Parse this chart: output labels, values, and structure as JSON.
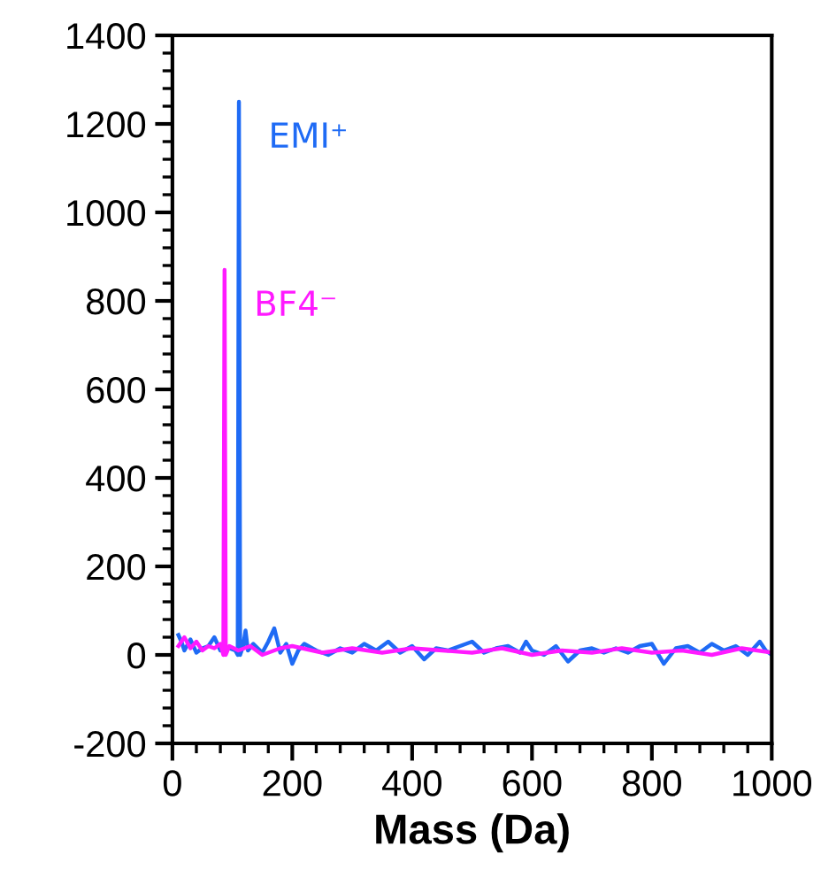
{
  "chart_data": {
    "type": "line",
    "xlabel": "Mass (Da)",
    "xlim": [
      0,
      1000
    ],
    "xticks": [
      0,
      200,
      400,
      600,
      800,
      1000
    ],
    "ylim": [
      -200,
      1400
    ],
    "yticks": [
      -200,
      0,
      200,
      400,
      600,
      800,
      1000,
      1200,
      1400
    ],
    "grid": false,
    "legend": false,
    "marker": "none",
    "line_style": "solid",
    "series": [
      {
        "name": "EMI⁺",
        "color": "#1f6bf5",
        "x": [
          10,
          15,
          20,
          30,
          40,
          50,
          60,
          70,
          80,
          95,
          105,
          109,
          111,
          113,
          118,
          122,
          126,
          135,
          150,
          160,
          170,
          180,
          190,
          200,
          210,
          220,
          240,
          260,
          280,
          300,
          320,
          340,
          360,
          380,
          400,
          420,
          440,
          460,
          490,
          500,
          520,
          540,
          560,
          580,
          590,
          600,
          620,
          640,
          660,
          680,
          700,
          720,
          740,
          760,
          780,
          800,
          820,
          840,
          860,
          880,
          900,
          920,
          940,
          960,
          980,
          990,
          1000
        ],
        "values": [
          45,
          30,
          10,
          35,
          5,
          15,
          20,
          40,
          10,
          15,
          10,
          0,
          1250,
          0,
          20,
          55,
          10,
          25,
          5,
          30,
          60,
          5,
          25,
          -20,
          10,
          25,
          10,
          0,
          15,
          5,
          25,
          10,
          30,
          5,
          20,
          -10,
          15,
          10,
          25,
          30,
          5,
          15,
          20,
          5,
          30,
          10,
          0,
          20,
          -15,
          10,
          15,
          5,
          15,
          5,
          20,
          25,
          -20,
          15,
          20,
          5,
          25,
          10,
          20,
          0,
          30,
          10,
          0
        ]
      },
      {
        "name": "BF4⁻",
        "color": "#ff1aff",
        "x": [
          10,
          20,
          30,
          40,
          50,
          60,
          70,
          80,
          85,
          87,
          89,
          95,
          110,
          130,
          150,
          180,
          200,
          250,
          300,
          350,
          400,
          450,
          500,
          550,
          600,
          650,
          700,
          750,
          800,
          850,
          900,
          950,
          1000
        ],
        "values": [
          20,
          40,
          15,
          30,
          10,
          20,
          15,
          25,
          0,
          870,
          0,
          20,
          10,
          20,
          0,
          15,
          20,
          5,
          15,
          5,
          15,
          10,
          5,
          15,
          0,
          10,
          5,
          15,
          5,
          10,
          0,
          15,
          5
        ]
      }
    ]
  }
}
